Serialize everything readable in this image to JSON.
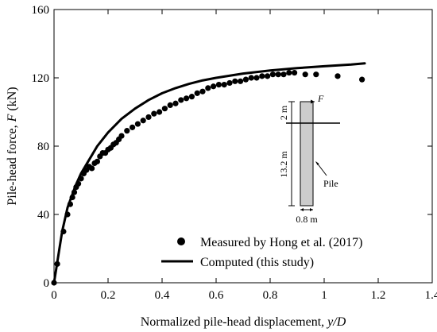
{
  "chart_data": {
    "type": "line",
    "xlabel": "Normalized pile-head displacement, y/D",
    "xlabel_parts": {
      "text": "Normalized pile-head displacement, ",
      "var": "y/D"
    },
    "ylabel": "Pile-head force, F (kN)",
    "ylabel_parts": {
      "pre": "Pile-head force, ",
      "var": "F",
      "post": " (kN)"
    },
    "xlim": [
      0,
      1.4
    ],
    "ylim": [
      0,
      160
    ],
    "xticks": [
      0,
      0.2,
      0.4,
      0.6,
      0.8,
      1,
      1.2,
      1.4
    ],
    "xtick_labels": [
      "0",
      "0.2",
      "0.4",
      "0.6",
      "0.8",
      "1",
      "1.2",
      "1.4"
    ],
    "yticks": [
      0,
      40,
      80,
      120,
      160
    ],
    "ytick_labels": [
      "0",
      "40",
      "80",
      "120",
      "160"
    ],
    "grid": false,
    "legend_position": "bottom-center",
    "series": [
      {
        "name": "Measured by Hong et al. (2017)",
        "kind": "scatter",
        "color": "#000000",
        "x": [
          0,
          0.012,
          0.035,
          0.05,
          0.06,
          0.068,
          0.075,
          0.082,
          0.09,
          0.1,
          0.11,
          0.12,
          0.13,
          0.14,
          0.15,
          0.16,
          0.17,
          0.18,
          0.19,
          0.2,
          0.21,
          0.22,
          0.23,
          0.24,
          0.25,
          0.27,
          0.29,
          0.31,
          0.33,
          0.35,
          0.37,
          0.39,
          0.41,
          0.43,
          0.45,
          0.47,
          0.49,
          0.51,
          0.53,
          0.55,
          0.57,
          0.59,
          0.61,
          0.63,
          0.65,
          0.67,
          0.69,
          0.71,
          0.73,
          0.75,
          0.77,
          0.79,
          0.81,
          0.83,
          0.85,
          0.87,
          0.89,
          0.93,
          0.97,
          1.05,
          1.14
        ],
        "y": [
          0,
          11,
          30,
          40,
          46,
          50,
          53,
          56,
          58,
          61,
          64,
          66,
          68,
          67,
          70,
          71,
          74,
          76,
          76,
          78,
          79,
          81,
          82,
          84,
          86,
          89,
          91,
          93,
          95,
          97,
          99,
          100,
          102,
          104,
          105,
          107,
          108,
          109,
          111,
          112,
          114,
          115,
          116,
          116,
          117,
          118,
          118,
          119,
          120,
          120,
          121,
          121,
          122,
          122,
          122,
          123,
          123,
          122,
          122,
          121,
          119
        ]
      },
      {
        "name": "Computed (this study)",
        "kind": "line",
        "color": "#000000",
        "x": [
          0,
          0.01,
          0.03,
          0.05,
          0.08,
          0.1,
          0.13,
          0.16,
          0.2,
          0.25,
          0.3,
          0.35,
          0.4,
          0.45,
          0.5,
          0.55,
          0.6,
          0.7,
          0.8,
          0.9,
          1.0,
          1.1,
          1.15
        ],
        "y": [
          0,
          10,
          30,
          44,
          57,
          64,
          72,
          80,
          88,
          96,
          102,
          107,
          111,
          114,
          116.5,
          118.5,
          120,
          122.5,
          124.3,
          125.7,
          126.8,
          127.8,
          128.5
        ]
      }
    ],
    "inset": {
      "force_label": "F",
      "dim_top": "2 m",
      "dim_length": "13.2 m",
      "dim_width": "0.8 m",
      "pile_label": "Pile",
      "pile_fill": "#cccccc"
    }
  }
}
